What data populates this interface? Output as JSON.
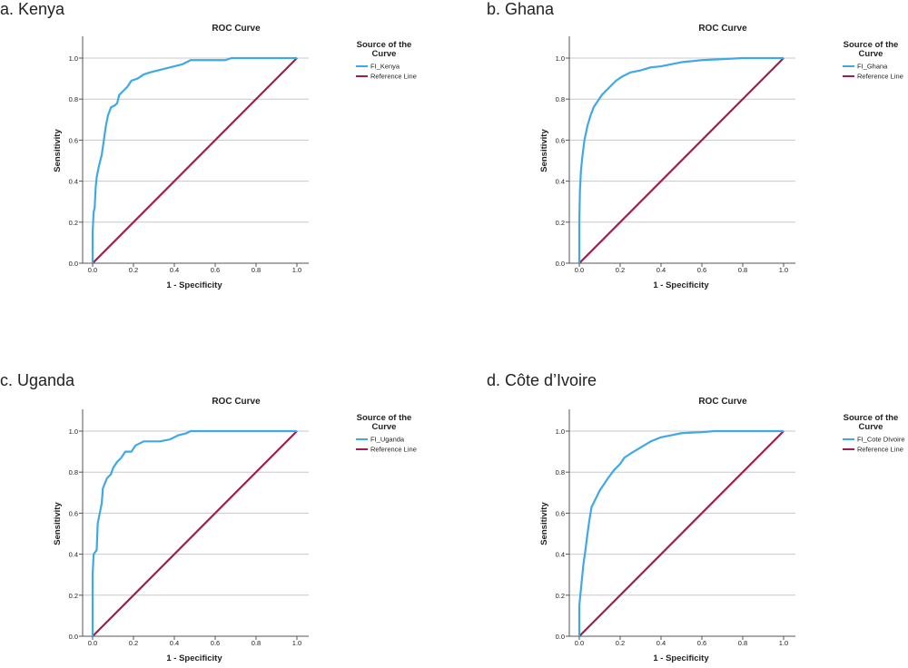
{
  "chart_data": [
    {
      "type": "line",
      "panel_label": "a. Kenya",
      "title": "ROC Curve",
      "xlabel": "1 - Specificity",
      "ylabel": "Sensitivity",
      "xlim": [
        0,
        1
      ],
      "ylim": [
        0,
        1.1
      ],
      "xticks": [
        "0.0",
        "0.2",
        "0.4",
        "0.6",
        "0.8",
        "1.0"
      ],
      "yticks": [
        "0.0",
        "0.2",
        "0.4",
        "0.6",
        "0.8",
        "1.0"
      ],
      "grid": "horizontal",
      "legend": {
        "title_line1": "Source of the",
        "title_line2": "Curve",
        "placement": "right"
      },
      "series": [
        {
          "name": "FI_Kenya",
          "color": "#3fa9e6",
          "points": [
            [
              0,
              0
            ],
            [
              0,
              0.15
            ],
            [
              0.005,
              0.25
            ],
            [
              0.01,
              0.27
            ],
            [
              0.015,
              0.37
            ],
            [
              0.02,
              0.42
            ],
            [
              0.03,
              0.47
            ],
            [
              0.045,
              0.53
            ],
            [
              0.055,
              0.6
            ],
            [
              0.065,
              0.67
            ],
            [
              0.075,
              0.72
            ],
            [
              0.09,
              0.76
            ],
            [
              0.11,
              0.77
            ],
            [
              0.12,
              0.78
            ],
            [
              0.13,
              0.82
            ],
            [
              0.15,
              0.84
            ],
            [
              0.17,
              0.86
            ],
            [
              0.19,
              0.89
            ],
            [
              0.22,
              0.9
            ],
            [
              0.25,
              0.92
            ],
            [
              0.28,
              0.93
            ],
            [
              0.32,
              0.94
            ],
            [
              0.36,
              0.95
            ],
            [
              0.4,
              0.96
            ],
            [
              0.44,
              0.97
            ],
            [
              0.48,
              0.99
            ],
            [
              0.55,
              0.99
            ],
            [
              0.65,
              0.99
            ],
            [
              0.68,
              1.0
            ],
            [
              1,
              1
            ]
          ]
        },
        {
          "name": "Reference Line",
          "color": "#9e1f4f",
          "points": [
            [
              0,
              0
            ],
            [
              1,
              1
            ]
          ]
        }
      ]
    },
    {
      "type": "line",
      "panel_label": "b. Ghana",
      "title": "ROC Curve",
      "xlabel": "1 - Specificity",
      "ylabel": "Sensitivity",
      "xlim": [
        0,
        1
      ],
      "ylim": [
        0,
        1.1
      ],
      "xticks": [
        "0.0",
        "0.2",
        "0.4",
        "0.6",
        "0.8",
        "1.0"
      ],
      "yticks": [
        "0.0",
        "0.2",
        "0.4",
        "0.6",
        "0.8",
        "1.0"
      ],
      "grid": "horizontal",
      "legend": {
        "title_line1": "Source of the",
        "title_line2": "Curve",
        "placement": "right"
      },
      "series": [
        {
          "name": "FI_Ghana",
          "color": "#3fa9e6",
          "points": [
            [
              0,
              0
            ],
            [
              0,
              0.2
            ],
            [
              0.003,
              0.35
            ],
            [
              0.008,
              0.45
            ],
            [
              0.015,
              0.52
            ],
            [
              0.025,
              0.6
            ],
            [
              0.04,
              0.67
            ],
            [
              0.055,
              0.72
            ],
            [
              0.07,
              0.76
            ],
            [
              0.09,
              0.79
            ],
            [
              0.11,
              0.82
            ],
            [
              0.13,
              0.84
            ],
            [
              0.15,
              0.86
            ],
            [
              0.18,
              0.89
            ],
            [
              0.21,
              0.91
            ],
            [
              0.25,
              0.93
            ],
            [
              0.3,
              0.94
            ],
            [
              0.35,
              0.955
            ],
            [
              0.4,
              0.96
            ],
            [
              0.45,
              0.97
            ],
            [
              0.5,
              0.98
            ],
            [
              0.6,
              0.99
            ],
            [
              0.7,
              0.995
            ],
            [
              0.8,
              1.0
            ],
            [
              1,
              1
            ]
          ]
        },
        {
          "name": "Reference Line",
          "color": "#9e1f4f",
          "points": [
            [
              0,
              0
            ],
            [
              1,
              1
            ]
          ]
        }
      ]
    },
    {
      "type": "line",
      "panel_label": "c. Uganda",
      "title": "ROC Curve",
      "xlabel": "1 - Specificity",
      "ylabel": "Sensitivity",
      "xlim": [
        0,
        1
      ],
      "ylim": [
        0,
        1.1
      ],
      "xticks": [
        "0.0",
        "0.2",
        "0.4",
        "0.6",
        "0.8",
        "1.0"
      ],
      "yticks": [
        "0.0",
        "0.2",
        "0.4",
        "0.6",
        "0.8",
        "1.0"
      ],
      "grid": "horizontal",
      "legend": {
        "title_line1": "Source of the",
        "title_line2": "Curve",
        "placement": "right"
      },
      "series": [
        {
          "name": "FI_Uganda",
          "color": "#3fa9e6",
          "points": [
            [
              0,
              0
            ],
            [
              0,
              0.3
            ],
            [
              0.005,
              0.4
            ],
            [
              0.02,
              0.42
            ],
            [
              0.025,
              0.55
            ],
            [
              0.035,
              0.6
            ],
            [
              0.045,
              0.65
            ],
            [
              0.05,
              0.72
            ],
            [
              0.07,
              0.77
            ],
            [
              0.09,
              0.79
            ],
            [
              0.1,
              0.82
            ],
            [
              0.12,
              0.85
            ],
            [
              0.14,
              0.87
            ],
            [
              0.16,
              0.9
            ],
            [
              0.19,
              0.9
            ],
            [
              0.21,
              0.93
            ],
            [
              0.25,
              0.95
            ],
            [
              0.33,
              0.95
            ],
            [
              0.38,
              0.96
            ],
            [
              0.42,
              0.98
            ],
            [
              0.46,
              0.99
            ],
            [
              0.48,
              1.0
            ],
            [
              1,
              1
            ]
          ]
        },
        {
          "name": "Reference Line",
          "color": "#9e1f4f",
          "points": [
            [
              0,
              0
            ],
            [
              1,
              1
            ]
          ]
        }
      ]
    },
    {
      "type": "line",
      "panel_label": "d. Côte d’Ivoire",
      "title": "ROC Curve",
      "xlabel": "1 - Specificity",
      "ylabel": "Sensitivity",
      "xlim": [
        0,
        1
      ],
      "ylim": [
        0,
        1.1
      ],
      "xticks": [
        "0.0",
        "0.2",
        "0.4",
        "0.6",
        "0.8",
        "1.0"
      ],
      "yticks": [
        "0.0",
        "0.2",
        "0.4",
        "0.6",
        "0.8",
        "1.0"
      ],
      "grid": "horizontal",
      "legend": {
        "title_line1": "Source of the",
        "title_line2": "Curve",
        "placement": "right"
      },
      "series": [
        {
          "name": "FI_Cote DIvoire",
          "color": "#3fa9e6",
          "points": [
            [
              0,
              0
            ],
            [
              0,
              0.15
            ],
            [
              0.01,
              0.25
            ],
            [
              0.02,
              0.35
            ],
            [
              0.03,
              0.42
            ],
            [
              0.04,
              0.5
            ],
            [
              0.05,
              0.57
            ],
            [
              0.06,
              0.63
            ],
            [
              0.08,
              0.67
            ],
            [
              0.1,
              0.71
            ],
            [
              0.12,
              0.74
            ],
            [
              0.14,
              0.77
            ],
            [
              0.17,
              0.81
            ],
            [
              0.2,
              0.84
            ],
            [
              0.22,
              0.87
            ],
            [
              0.25,
              0.89
            ],
            [
              0.3,
              0.92
            ],
            [
              0.35,
              0.95
            ],
            [
              0.4,
              0.97
            ],
            [
              0.45,
              0.98
            ],
            [
              0.5,
              0.99
            ],
            [
              0.6,
              0.995
            ],
            [
              0.66,
              1.0
            ],
            [
              1,
              1
            ]
          ]
        },
        {
          "name": "Reference Line",
          "color": "#9e1f4f",
          "points": [
            [
              0,
              0
            ],
            [
              1,
              1
            ]
          ]
        }
      ]
    }
  ]
}
